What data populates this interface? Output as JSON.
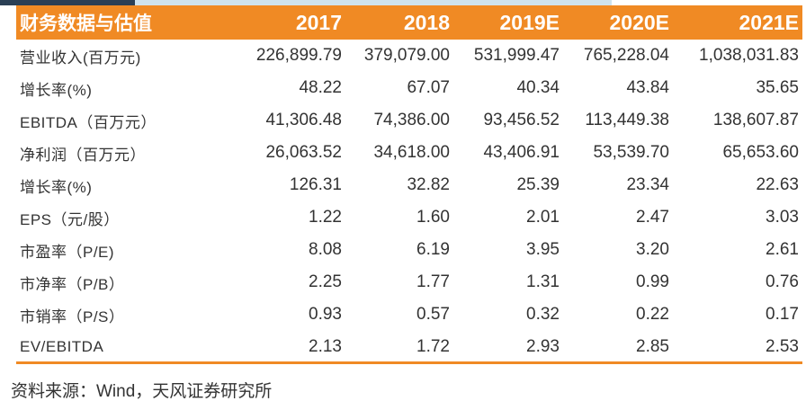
{
  "table": {
    "header_label": "财务数据与估值",
    "years": [
      "2017",
      "2018",
      "2019E",
      "2020E",
      "2021E"
    ],
    "rows": [
      {
        "label": "营业收入(百万元)",
        "values": [
          "226,899.79",
          "379,079.00",
          "531,999.47",
          "765,228.04",
          "1,038,031.83"
        ]
      },
      {
        "label": "增长率(%)",
        "values": [
          "48.22",
          "67.07",
          "40.34",
          "43.84",
          "35.65"
        ]
      },
      {
        "label": "EBITDA（百万元）",
        "values": [
          "41,306.48",
          "74,386.00",
          "93,456.52",
          "113,449.38",
          "138,607.87"
        ]
      },
      {
        "label": "净利润（百万元）",
        "values": [
          "26,063.52",
          "34,618.00",
          "43,406.91",
          "53,539.70",
          "65,653.60"
        ]
      },
      {
        "label": "增长率(%)",
        "values": [
          "126.31",
          "32.82",
          "25.39",
          "23.34",
          "22.63"
        ]
      },
      {
        "label": "EPS（元/股）",
        "values": [
          "1.22",
          "1.60",
          "2.01",
          "2.47",
          "3.03"
        ]
      },
      {
        "label": "市盈率（P/E)",
        "values": [
          "8.08",
          "6.19",
          "3.95",
          "3.20",
          "2.61"
        ]
      },
      {
        "label": "市净率（P/B）",
        "values": [
          "2.25",
          "1.77",
          "1.31",
          "0.99",
          "0.76"
        ]
      },
      {
        "label": "市销率（P/S）",
        "values": [
          "0.93",
          "0.57",
          "0.32",
          "0.22",
          "0.17"
        ]
      },
      {
        "label": "EV/EBITDA",
        "values": [
          "2.13",
          "1.72",
          "2.93",
          "2.85",
          "2.53"
        ]
      }
    ]
  },
  "source_note": "资料来源：Wind，天风证券研究所",
  "colors": {
    "header_bg": "#f08a24",
    "header_text": "#ffffff",
    "body_text": "#333333"
  }
}
